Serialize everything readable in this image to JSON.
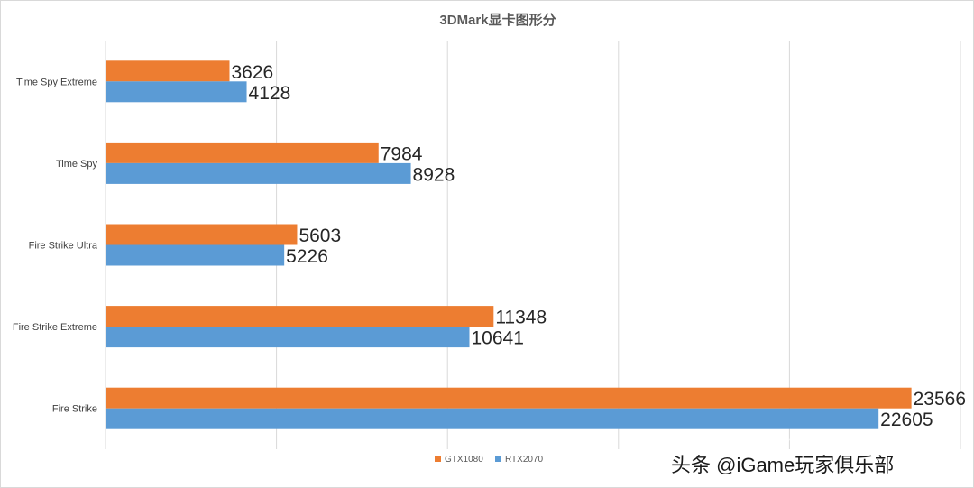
{
  "chart_data": {
    "type": "bar",
    "orientation": "horizontal",
    "title": "3DMark显卡图形分",
    "xlabel": "",
    "ylabel": "",
    "xlim": [
      0,
      25000
    ],
    "grid": true,
    "categories": [
      "Time Spy Extreme",
      "Time Spy",
      "Fire Strike Ultra",
      "Fire Strike Extreme",
      "Fire Strike"
    ],
    "series": [
      {
        "name": "GTX1080",
        "color": "#ED7D31",
        "values": [
          3626,
          7984,
          5603,
          11348,
          23566
        ]
      },
      {
        "name": "RTX2070",
        "color": "#5B9BD5",
        "values": [
          4128,
          8928,
          5226,
          10641,
          22605
        ]
      }
    ],
    "legend_position": "bottom"
  },
  "watermark": {
    "text": "头条 @iGame玩家俱乐部",
    "faint_text": "iGame玩家俱乐部"
  }
}
